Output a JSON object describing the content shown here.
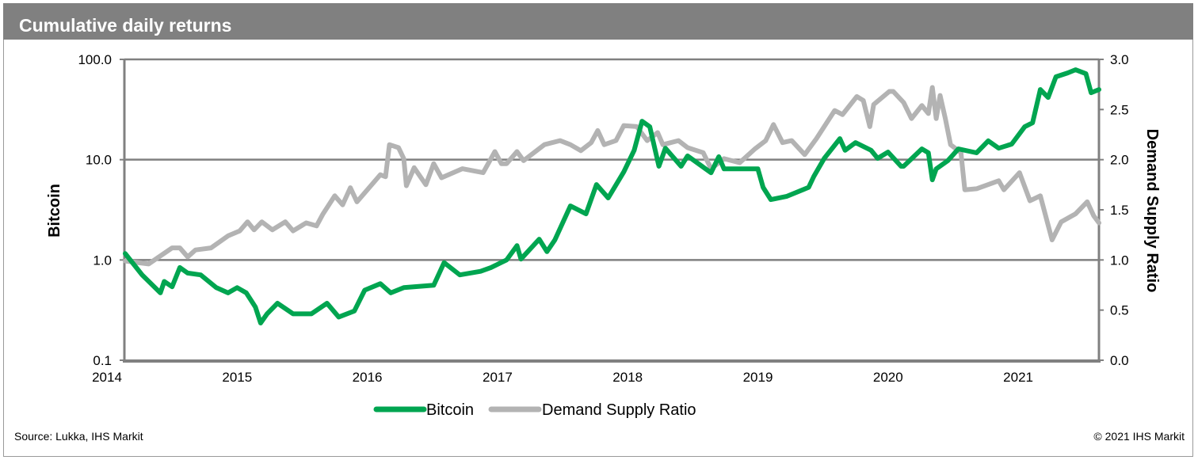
{
  "chart_data": {
    "type": "line",
    "title": "Cumulative daily returns",
    "xlabel": "",
    "ylabel": "Bitcoin",
    "y2label": "Demand Supply Ratio",
    "x_ticks": [
      "2014",
      "2015",
      "2016",
      "2017",
      "2018",
      "2019",
      "2020",
      "2021"
    ],
    "y_ticks": [
      "0.1",
      "1.0",
      "10.0",
      "100.0"
    ],
    "y2_ticks": [
      "0.0",
      "0.5",
      "1.0",
      "1.5",
      "2.0",
      "2.5",
      "3.0"
    ],
    "xlim": [
      2014.13,
      2021.62
    ],
    "ylim": [
      0.1,
      100
    ],
    "yscale": "log",
    "y2lim": [
      0,
      3
    ],
    "grid": "horizontal",
    "legend_position": "bottom-center",
    "series": [
      {
        "name": "Bitcoin",
        "axis": "left",
        "color": "#00a550",
        "points": [
          [
            2014.14,
            1.16
          ],
          [
            2014.27,
            0.71
          ],
          [
            2014.41,
            0.47
          ],
          [
            2014.44,
            0.61
          ],
          [
            2014.5,
            0.54
          ],
          [
            2014.56,
            0.84
          ],
          [
            2014.62,
            0.74
          ],
          [
            2014.72,
            0.71
          ],
          [
            2014.84,
            0.53
          ],
          [
            2014.93,
            0.47
          ],
          [
            2015.0,
            0.53
          ],
          [
            2015.07,
            0.47
          ],
          [
            2015.14,
            0.34
          ],
          [
            2015.18,
            0.235
          ],
          [
            2015.23,
            0.29
          ],
          [
            2015.31,
            0.37
          ],
          [
            2015.43,
            0.29
          ],
          [
            2015.57,
            0.29
          ],
          [
            2015.69,
            0.37
          ],
          [
            2015.78,
            0.27
          ],
          [
            2015.9,
            0.31
          ],
          [
            2015.98,
            0.5
          ],
          [
            2016.1,
            0.58
          ],
          [
            2016.18,
            0.47
          ],
          [
            2016.28,
            0.53
          ],
          [
            2016.51,
            0.56
          ],
          [
            2016.59,
            0.94
          ],
          [
            2016.71,
            0.71
          ],
          [
            2016.87,
            0.77
          ],
          [
            2016.95,
            0.84
          ],
          [
            2017.07,
            1.0
          ],
          [
            2017.15,
            1.39
          ],
          [
            2017.18,
            1.02
          ],
          [
            2017.32,
            1.61
          ],
          [
            2017.38,
            1.21
          ],
          [
            2017.44,
            1.58
          ],
          [
            2017.56,
            3.46
          ],
          [
            2017.68,
            2.88
          ],
          [
            2017.76,
            5.65
          ],
          [
            2017.85,
            4.15
          ],
          [
            2017.97,
            7.56
          ],
          [
            2018.05,
            12.4
          ],
          [
            2018.11,
            24.2
          ],
          [
            2018.17,
            21.3
          ],
          [
            2018.24,
            8.6
          ],
          [
            2018.29,
            13.0
          ],
          [
            2018.41,
            8.6
          ],
          [
            2018.46,
            10.9
          ],
          [
            2018.64,
            7.4
          ],
          [
            2018.7,
            10.7
          ],
          [
            2018.74,
            8.1
          ],
          [
            2019.0,
            8.1
          ],
          [
            2019.04,
            5.3
          ],
          [
            2019.1,
            4.0
          ],
          [
            2019.22,
            4.3
          ],
          [
            2019.39,
            5.3
          ],
          [
            2019.43,
            6.8
          ],
          [
            2019.51,
            10.3
          ],
          [
            2019.63,
            16.2
          ],
          [
            2019.67,
            12.4
          ],
          [
            2019.75,
            14.8
          ],
          [
            2019.87,
            12.4
          ],
          [
            2019.92,
            10.3
          ],
          [
            2020.0,
            11.9
          ],
          [
            2020.1,
            8.6
          ],
          [
            2020.12,
            8.6
          ],
          [
            2020.26,
            12.8
          ],
          [
            2020.31,
            11.7
          ],
          [
            2020.34,
            6.3
          ],
          [
            2020.37,
            8.1
          ],
          [
            2020.46,
            9.8
          ],
          [
            2020.54,
            12.8
          ],
          [
            2020.68,
            11.7
          ],
          [
            2020.77,
            15.4
          ],
          [
            2020.85,
            13.0
          ],
          [
            2020.95,
            14.3
          ],
          [
            2021.05,
            21.3
          ],
          [
            2021.11,
            23.3
          ],
          [
            2021.17,
            50.0
          ],
          [
            2021.23,
            41.7
          ],
          [
            2021.29,
            67.0
          ],
          [
            2021.38,
            73.3
          ],
          [
            2021.44,
            78.8
          ],
          [
            2021.52,
            72.0
          ],
          [
            2021.56,
            46.5
          ],
          [
            2021.62,
            50.0
          ]
        ]
      },
      {
        "name": "Demand Supply Ratio",
        "axis": "right",
        "color": "#b3b3b3",
        "points": [
          [
            2014.14,
            0.99
          ],
          [
            2014.32,
            0.96
          ],
          [
            2014.5,
            1.12
          ],
          [
            2014.56,
            1.12
          ],
          [
            2014.62,
            1.03
          ],
          [
            2014.68,
            1.1
          ],
          [
            2014.8,
            1.12
          ],
          [
            2014.93,
            1.24
          ],
          [
            2015.02,
            1.29
          ],
          [
            2015.08,
            1.38
          ],
          [
            2015.13,
            1.3
          ],
          [
            2015.19,
            1.38
          ],
          [
            2015.27,
            1.3
          ],
          [
            2015.37,
            1.38
          ],
          [
            2015.43,
            1.29
          ],
          [
            2015.53,
            1.37
          ],
          [
            2015.61,
            1.34
          ],
          [
            2015.66,
            1.46
          ],
          [
            2015.75,
            1.64
          ],
          [
            2015.81,
            1.55
          ],
          [
            2015.87,
            1.72
          ],
          [
            2015.92,
            1.58
          ],
          [
            2016.04,
            1.76
          ],
          [
            2016.1,
            1.85
          ],
          [
            2016.14,
            1.83
          ],
          [
            2016.17,
            2.15
          ],
          [
            2016.24,
            2.12
          ],
          [
            2016.28,
            2.01
          ],
          [
            2016.3,
            1.74
          ],
          [
            2016.36,
            1.92
          ],
          [
            2016.45,
            1.75
          ],
          [
            2016.51,
            1.96
          ],
          [
            2016.57,
            1.82
          ],
          [
            2016.73,
            1.91
          ],
          [
            2016.89,
            1.87
          ],
          [
            2016.98,
            2.08
          ],
          [
            2017.03,
            1.96
          ],
          [
            2017.07,
            1.96
          ],
          [
            2017.15,
            2.08
          ],
          [
            2017.2,
            1.99
          ],
          [
            2017.36,
            2.15
          ],
          [
            2017.48,
            2.19
          ],
          [
            2017.56,
            2.15
          ],
          [
            2017.64,
            2.09
          ],
          [
            2017.72,
            2.17
          ],
          [
            2017.77,
            2.29
          ],
          [
            2017.82,
            2.15
          ],
          [
            2017.91,
            2.19
          ],
          [
            2017.97,
            2.34
          ],
          [
            2018.07,
            2.33
          ],
          [
            2018.15,
            2.19
          ],
          [
            2018.23,
            2.27
          ],
          [
            2018.27,
            2.15
          ],
          [
            2018.39,
            2.19
          ],
          [
            2018.46,
            2.12
          ],
          [
            2018.58,
            2.07
          ],
          [
            2018.64,
            1.91
          ],
          [
            2018.74,
            2.01
          ],
          [
            2018.86,
            1.97
          ],
          [
            2018.98,
            2.11
          ],
          [
            2019.06,
            2.19
          ],
          [
            2019.12,
            2.35
          ],
          [
            2019.19,
            2.17
          ],
          [
            2019.26,
            2.19
          ],
          [
            2019.36,
            2.05
          ],
          [
            2019.45,
            2.21
          ],
          [
            2019.59,
            2.49
          ],
          [
            2019.65,
            2.45
          ],
          [
            2019.76,
            2.63
          ],
          [
            2019.81,
            2.59
          ],
          [
            2019.86,
            2.33
          ],
          [
            2019.89,
            2.55
          ],
          [
            2020.01,
            2.68
          ],
          [
            2020.04,
            2.68
          ],
          [
            2020.12,
            2.57
          ],
          [
            2020.18,
            2.41
          ],
          [
            2020.26,
            2.54
          ],
          [
            2020.31,
            2.46
          ],
          [
            2020.34,
            2.72
          ],
          [
            2020.37,
            2.41
          ],
          [
            2020.4,
            2.64
          ],
          [
            2020.44,
            2.41
          ],
          [
            2020.48,
            2.15
          ],
          [
            2020.56,
            2.07
          ],
          [
            2020.59,
            1.7
          ],
          [
            2020.68,
            1.71
          ],
          [
            2020.85,
            1.79
          ],
          [
            2020.89,
            1.7
          ],
          [
            2021.01,
            1.87
          ],
          [
            2021.09,
            1.59
          ],
          [
            2021.17,
            1.64
          ],
          [
            2021.26,
            1.2
          ],
          [
            2021.33,
            1.38
          ],
          [
            2021.44,
            1.46
          ],
          [
            2021.53,
            1.58
          ],
          [
            2021.58,
            1.44
          ],
          [
            2021.62,
            1.37
          ]
        ]
      }
    ]
  },
  "footer": {
    "source": "Source: Lukka, IHS Markit",
    "copyright": "© 2021 IHS Markit"
  }
}
